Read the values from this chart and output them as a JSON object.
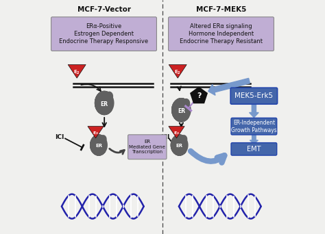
{
  "bg_color": "#f0f0ee",
  "title_left": "MCF-7-Vector",
  "title_right": "MCF-7-MEK5",
  "box_left_text": "ERα-Positive\nEstrogen Dependent\nEndocrine Therapy Responsive",
  "box_right_text": "Altered ERα signaling\nHormone Independent\nEndocrine Therapy Resistant",
  "box_color": "#c0aed4",
  "box_edge": "#888888",
  "er_color": "#606060",
  "e2_color": "#cc2222",
  "dna_color1": "#2222aa",
  "arrow_dark": "#111111",
  "arrow_blue": "#6688bb",
  "arrow_blue_fill": "#7799cc",
  "arrow_purple": "#aa88cc",
  "mek5_box_color": "#4466aa",
  "mek5_box_edge": "#2244aa",
  "mek5_text_color": "#ffffff",
  "ici_text_color": "#111111",
  "pentagon_color": "#111111",
  "inhibit_color": "#aa88cc",
  "gene_box_color": "#c0aed4",
  "divider_color": "#444444"
}
